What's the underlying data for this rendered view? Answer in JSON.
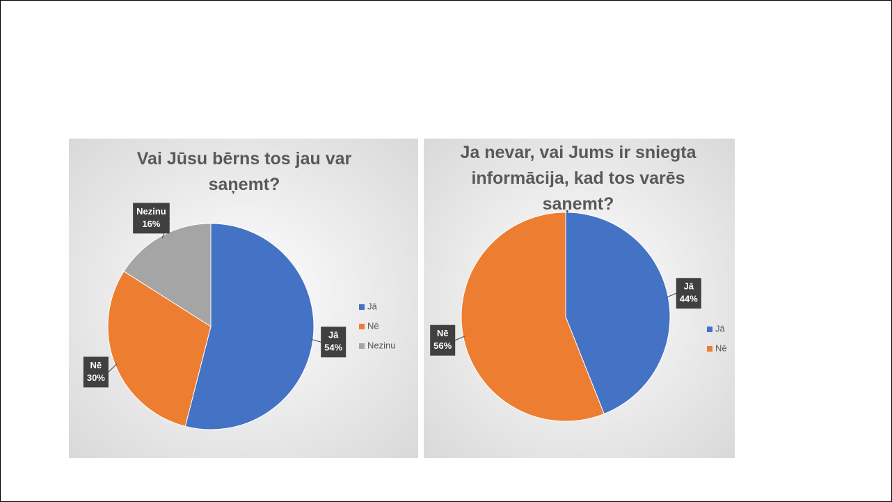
{
  "chart_data": [
    {
      "type": "pie",
      "title": "Vai Jūsu bērns tos jau var saņemt?",
      "categories": [
        "Jā",
        "Nē",
        "Nezinu"
      ],
      "values": [
        54,
        30,
        16
      ],
      "value_labels": [
        "54%",
        "30%",
        "16%"
      ],
      "colors": [
        "#4472c4",
        "#ed7d31",
        "#a5a5a5"
      ],
      "legend": "right"
    },
    {
      "type": "pie",
      "title": "Ja nevar, vai Jums ir sniegta informācija, kad tos varēs saņemt?",
      "categories": [
        "Jā",
        "Nē"
      ],
      "values": [
        44,
        56
      ],
      "value_labels": [
        "44%",
        "56%"
      ],
      "colors": [
        "#4472c4",
        "#ed7d31"
      ],
      "legend": "right"
    }
  ]
}
